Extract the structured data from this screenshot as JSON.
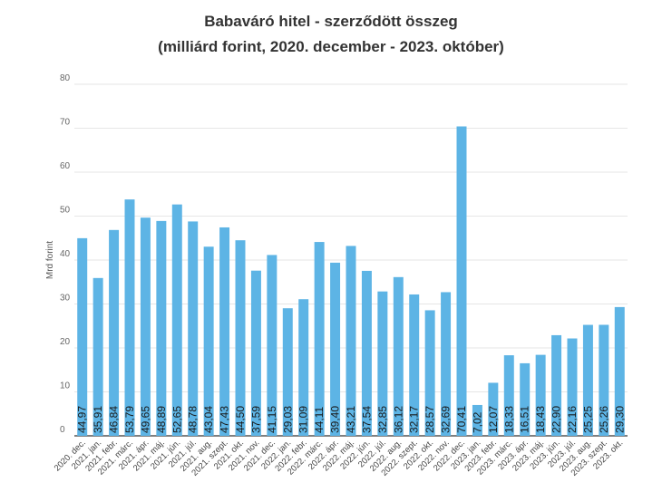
{
  "chart_data": {
    "type": "bar",
    "title": "Babaváró hitel - szerződött összeg",
    "subtitle": "(milliárd forint, 2020. december - 2023. október)",
    "ylabel": "Mrd forint",
    "xlabel": "",
    "ylim": [
      0,
      80
    ],
    "yticks": [
      0,
      10,
      20,
      30,
      40,
      50,
      60,
      70,
      80
    ],
    "grid": true,
    "legend": "none",
    "bar_color": "#5db4e5",
    "categories": [
      "2020. dec.",
      "2021. jan.",
      "2021. febr.",
      "2021. márc.",
      "2021. ápr.",
      "2021. máj.",
      "2021. jún.",
      "2021. júl.",
      "2021. aug.",
      "2021. szept.",
      "2021. okt.",
      "2021. nov.",
      "2021. dec.",
      "2022. jan.",
      "2022. febr.",
      "2022. márc.",
      "2022. ápr.",
      "2022. máj.",
      "2022. jún.",
      "2022. júl.",
      "2022. aug.",
      "2022. szept.",
      "2022. okt.",
      "2022. nov.",
      "2022. dec.",
      "2023. jan.",
      "2023. febr.",
      "2023. márc.",
      "2023. ápr.",
      "2023. máj.",
      "2023. jún.",
      "2023. júl.",
      "2023. aug.",
      "2023. szept.",
      "2023. okt."
    ],
    "values": [
      44.97,
      35.91,
      46.84,
      53.79,
      49.65,
      48.89,
      52.65,
      48.78,
      43.04,
      47.43,
      44.5,
      37.59,
      41.15,
      29.03,
      31.09,
      44.11,
      39.4,
      43.21,
      37.54,
      32.85,
      36.12,
      32.17,
      28.57,
      32.69,
      70.41,
      7.02,
      12.07,
      18.33,
      16.51,
      18.43,
      22.9,
      22.16,
      25.25,
      25.26,
      29.3
    ],
    "data_labels": [
      "44,97",
      "35,91",
      "46,84",
      "53,79",
      "49,65",
      "48,89",
      "52,65",
      "48,78",
      "43,04",
      "47,43",
      "44,50",
      "37,59",
      "41,15",
      "29,03",
      "31,09",
      "44,11",
      "39,40",
      "43,21",
      "37,54",
      "32,85",
      "36,12",
      "32,17",
      "28,57",
      "32,69",
      "70,41",
      "7,02",
      "12,07",
      "18,33",
      "16,51",
      "18,43",
      "22,90",
      "22,16",
      "25,25",
      "25,26",
      "29,30"
    ]
  }
}
